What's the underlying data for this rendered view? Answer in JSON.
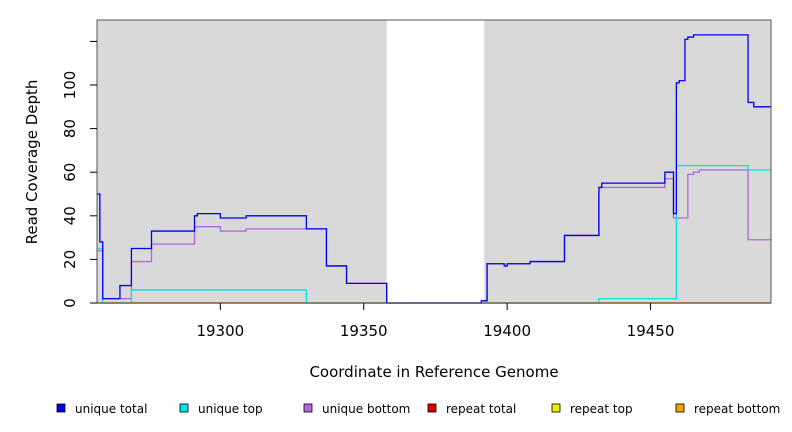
{
  "chart_data": {
    "type": "line",
    "step": true,
    "xlabel": "Coordinate in Reference Genome",
    "ylabel": "Read Coverage Depth",
    "xlim": [
      19257,
      19492
    ],
    "ylim": [
      0,
      130
    ],
    "x_ticks": [
      19300,
      19350,
      19400,
      19450
    ],
    "y_ticks": [
      0,
      20,
      40,
      60,
      80,
      100
    ],
    "colors": {
      "background_shade": "#d9d9d9",
      "plot_frame": "#555555"
    },
    "shaded_regions": [
      [
        19257,
        19358
      ],
      [
        19392,
        19492
      ]
    ],
    "legend_position": "bottom",
    "series": [
      {
        "name": "unique total",
        "color": "#0000ee",
        "x": [
          19257,
          19258,
          19259,
          19260,
          19265,
          19269,
          19276,
          19291,
          19292,
          19300,
          19309,
          19330,
          19337,
          19344,
          19358,
          19391,
          19393,
          19399,
          19400,
          19408,
          19420,
          19432,
          19433,
          19455,
          19458,
          19459,
          19460,
          19462,
          19463,
          19465,
          19484,
          19486,
          19492
        ],
        "y": [
          50,
          28,
          2,
          2,
          8,
          25,
          33,
          40,
          41,
          39,
          40,
          34,
          17,
          9,
          0,
          1,
          18,
          17,
          18,
          19,
          31,
          53,
          55,
          60,
          41,
          101,
          102,
          121,
          122,
          123,
          92,
          90,
          90
        ]
      },
      {
        "name": "unique top",
        "color": "#00e5e5",
        "x": [
          19257,
          19259,
          19269,
          19330,
          19432,
          19459,
          19484,
          19492
        ],
        "y": [
          25,
          0,
          6,
          0,
          2,
          63,
          61,
          61
        ]
      },
      {
        "name": "unique bottom",
        "color": "#b565e0",
        "x": [
          19257,
          19259,
          19269,
          19276,
          19291,
          19300,
          19309,
          19330,
          19337,
          19344,
          19358,
          19391,
          19393,
          19399,
          19400,
          19408,
          19420,
          19432,
          19433,
          19455,
          19458,
          19463,
          19465,
          19467,
          19484,
          19492
        ],
        "y": [
          24,
          2,
          19,
          27,
          35,
          33,
          34,
          34,
          17,
          9,
          0,
          1,
          18,
          17,
          18,
          19,
          31,
          53,
          53,
          57,
          39,
          59,
          60,
          61,
          29,
          29
        ]
      },
      {
        "name": "repeat total",
        "color": "#e00000",
        "x": [
          19257,
          19492
        ],
        "y": [
          0,
          0
        ]
      },
      {
        "name": "repeat top",
        "color": "#eeee00",
        "x": [
          19257,
          19492
        ],
        "y": [
          0,
          0
        ]
      },
      {
        "name": "repeat bottom",
        "color": "#f5a000",
        "x": [
          19257,
          19492
        ],
        "y": [
          0,
          0
        ]
      }
    ]
  }
}
